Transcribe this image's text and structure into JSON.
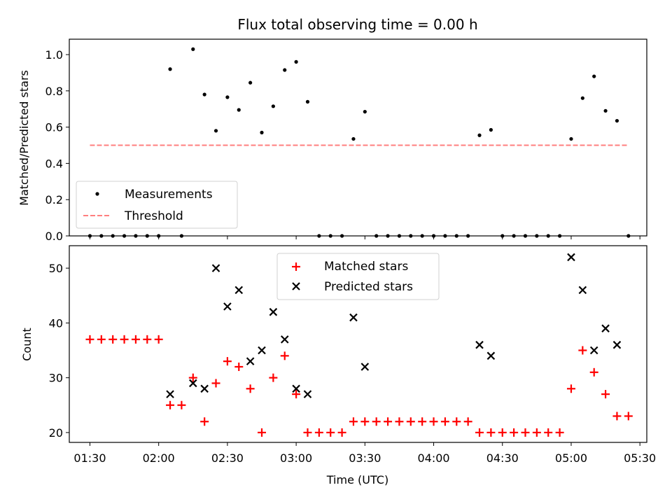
{
  "title": "Flux total observing time = 0.00 h",
  "chart_data": [
    {
      "type": "scatter",
      "ylabel": "Matched/Predicted stars",
      "xlim": [
        "01:21",
        "05:33"
      ],
      "ylim": [
        0,
        1.085
      ],
      "yticks": [
        0.0,
        0.2,
        0.4,
        0.6,
        0.8,
        1.0
      ],
      "ytick_labels": [
        "0.0",
        "0.2",
        "0.4",
        "0.6",
        "0.8",
        "1.0"
      ],
      "legend_position": "lower-left",
      "series": [
        {
          "name": "Measurements",
          "color": "#000000",
          "marker": "dot",
          "x": [
            "01:30",
            "01:35",
            "01:40",
            "01:45",
            "01:50",
            "01:55",
            "02:00",
            "02:05",
            "02:10",
            "02:15",
            "02:20",
            "02:25",
            "02:30",
            "02:35",
            "02:40",
            "02:45",
            "02:50",
            "02:55",
            "03:00",
            "03:05",
            "03:10",
            "03:15",
            "03:20",
            "03:25",
            "03:30",
            "03:35",
            "03:40",
            "03:45",
            "03:50",
            "03:55",
            "04:00",
            "04:05",
            "04:10",
            "04:15",
            "04:20",
            "04:25",
            "04:30",
            "04:35",
            "04:40",
            "04:45",
            "04:50",
            "04:55",
            "05:00",
            "05:05",
            "05:10",
            "05:15",
            "05:20",
            "05:25"
          ],
          "y": [
            0,
            0,
            0,
            0,
            0,
            0,
            0,
            0.92,
            0,
            1.03,
            0.78,
            0.58,
            0.765,
            0.695,
            0.845,
            0.57,
            0.715,
            0.915,
            0.96,
            0.74,
            0,
            0,
            0,
            0.535,
            0.685,
            0,
            0,
            0,
            0,
            0,
            0,
            0,
            0,
            0,
            0.555,
            0.585,
            0,
            0,
            0,
            0,
            0,
            0,
            0.535,
            0.76,
            0.88,
            0.69,
            0.635,
            0
          ]
        },
        {
          "name": "Threshold",
          "color": "#ff7f7f",
          "style": "dashed",
          "x": [
            "01:30",
            "05:25"
          ],
          "y": [
            0.5,
            0.5
          ]
        }
      ]
    },
    {
      "type": "scatter",
      "xlabel": "Time (UTC)",
      "ylabel": "Count",
      "xlim": [
        "01:21",
        "05:33"
      ],
      "ylim": [
        18.2,
        54.1
      ],
      "xticks": [
        "01:30",
        "02:00",
        "02:30",
        "03:00",
        "03:30",
        "04:00",
        "04:30",
        "05:00",
        "05:30"
      ],
      "xtick_labels": [
        "01:30",
        "02:00",
        "02:30",
        "03:00",
        "03:30",
        "04:00",
        "04:30",
        "05:00",
        "05:30"
      ],
      "yticks": [
        20,
        30,
        40,
        50
      ],
      "ytick_labels": [
        "20",
        "30",
        "40",
        "50"
      ],
      "legend_position": "upper-center",
      "series": [
        {
          "name": "Matched stars",
          "color": "#ff0000",
          "marker": "plus",
          "x": [
            "01:30",
            "01:35",
            "01:40",
            "01:45",
            "01:50",
            "01:55",
            "02:00",
            "02:05",
            "02:10",
            "02:15",
            "02:20",
            "02:25",
            "02:30",
            "02:35",
            "02:40",
            "02:45",
            "02:50",
            "02:55",
            "03:00",
            "03:05",
            "03:10",
            "03:15",
            "03:20",
            "03:25",
            "03:30",
            "03:35",
            "03:40",
            "03:45",
            "03:50",
            "03:55",
            "04:00",
            "04:05",
            "04:10",
            "04:15",
            "04:20",
            "04:25",
            "04:30",
            "04:35",
            "04:40",
            "04:45",
            "04:50",
            "04:55",
            "05:00",
            "05:05",
            "05:10",
            "05:15",
            "05:20",
            "05:25"
          ],
          "y": [
            37,
            37,
            37,
            37,
            37,
            37,
            37,
            25,
            25,
            30,
            22,
            29,
            33,
            32,
            28,
            20,
            30,
            34,
            27,
            20,
            20,
            20,
            20,
            22,
            22,
            22,
            22,
            22,
            22,
            22,
            22,
            22,
            22,
            22,
            20,
            20,
            20,
            20,
            20,
            20,
            20,
            20,
            28,
            35,
            31,
            27,
            23,
            23
          ]
        },
        {
          "name": "Predicted stars",
          "color": "#000000",
          "marker": "x",
          "x": [
            "02:05",
            "02:15",
            "02:20",
            "02:25",
            "02:30",
            "02:35",
            "02:40",
            "02:45",
            "02:50",
            "02:55",
            "03:00",
            "03:05",
            "03:25",
            "03:30",
            "04:20",
            "04:25",
            "05:00",
            "05:05",
            "05:10",
            "05:15",
            "05:20"
          ],
          "y": [
            27,
            29,
            28,
            50,
            43,
            46,
            33,
            35,
            42,
            37,
            28,
            27,
            41,
            32,
            36,
            34,
            52,
            46,
            35,
            39,
            36
          ]
        }
      ]
    }
  ]
}
